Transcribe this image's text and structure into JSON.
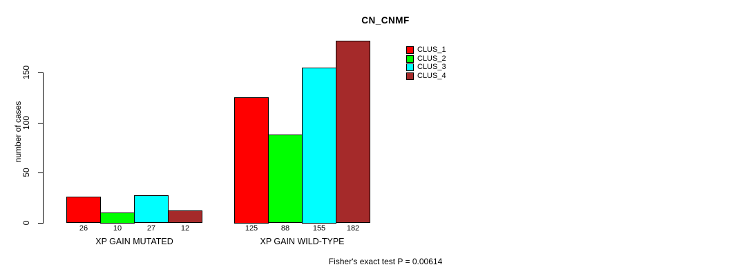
{
  "title": "CN_CNMF",
  "annotation": "Fisher's exact test P = 0.00614",
  "y_axis": {
    "label": "number of cases",
    "ticks": [
      0,
      50,
      100,
      150
    ]
  },
  "legend": {
    "items": [
      {
        "label": "CLUS_1",
        "color": "#FF0000"
      },
      {
        "label": "CLUS_2",
        "color": "#00FF00"
      },
      {
        "label": "CLUS_3",
        "color": "#00FFFF"
      },
      {
        "label": "CLUS_4",
        "color": "#A52A2A"
      }
    ]
  },
  "chart_data": {
    "type": "bar",
    "title": "CN_CNMF",
    "xlabel": "",
    "ylabel": "number of cases",
    "ylim": [
      0,
      185
    ],
    "yticks": [
      0,
      50,
      100,
      150
    ],
    "grid": false,
    "legend_position": "top-right",
    "bar_values_labeled": true,
    "annotation": "Fisher's exact test P = 0.00614",
    "categories": [
      "XP GAIN MUTATED",
      "XP GAIN WILD-TYPE"
    ],
    "series": [
      {
        "name": "CLUS_1",
        "color": "#FF0000",
        "values": [
          26,
          125
        ]
      },
      {
        "name": "CLUS_2",
        "color": "#00FF00",
        "values": [
          10,
          88
        ]
      },
      {
        "name": "CLUS_3",
        "color": "#00FFFF",
        "values": [
          27,
          155
        ]
      },
      {
        "name": "CLUS_4",
        "color": "#A52A2A",
        "values": [
          12,
          182
        ]
      }
    ]
  }
}
